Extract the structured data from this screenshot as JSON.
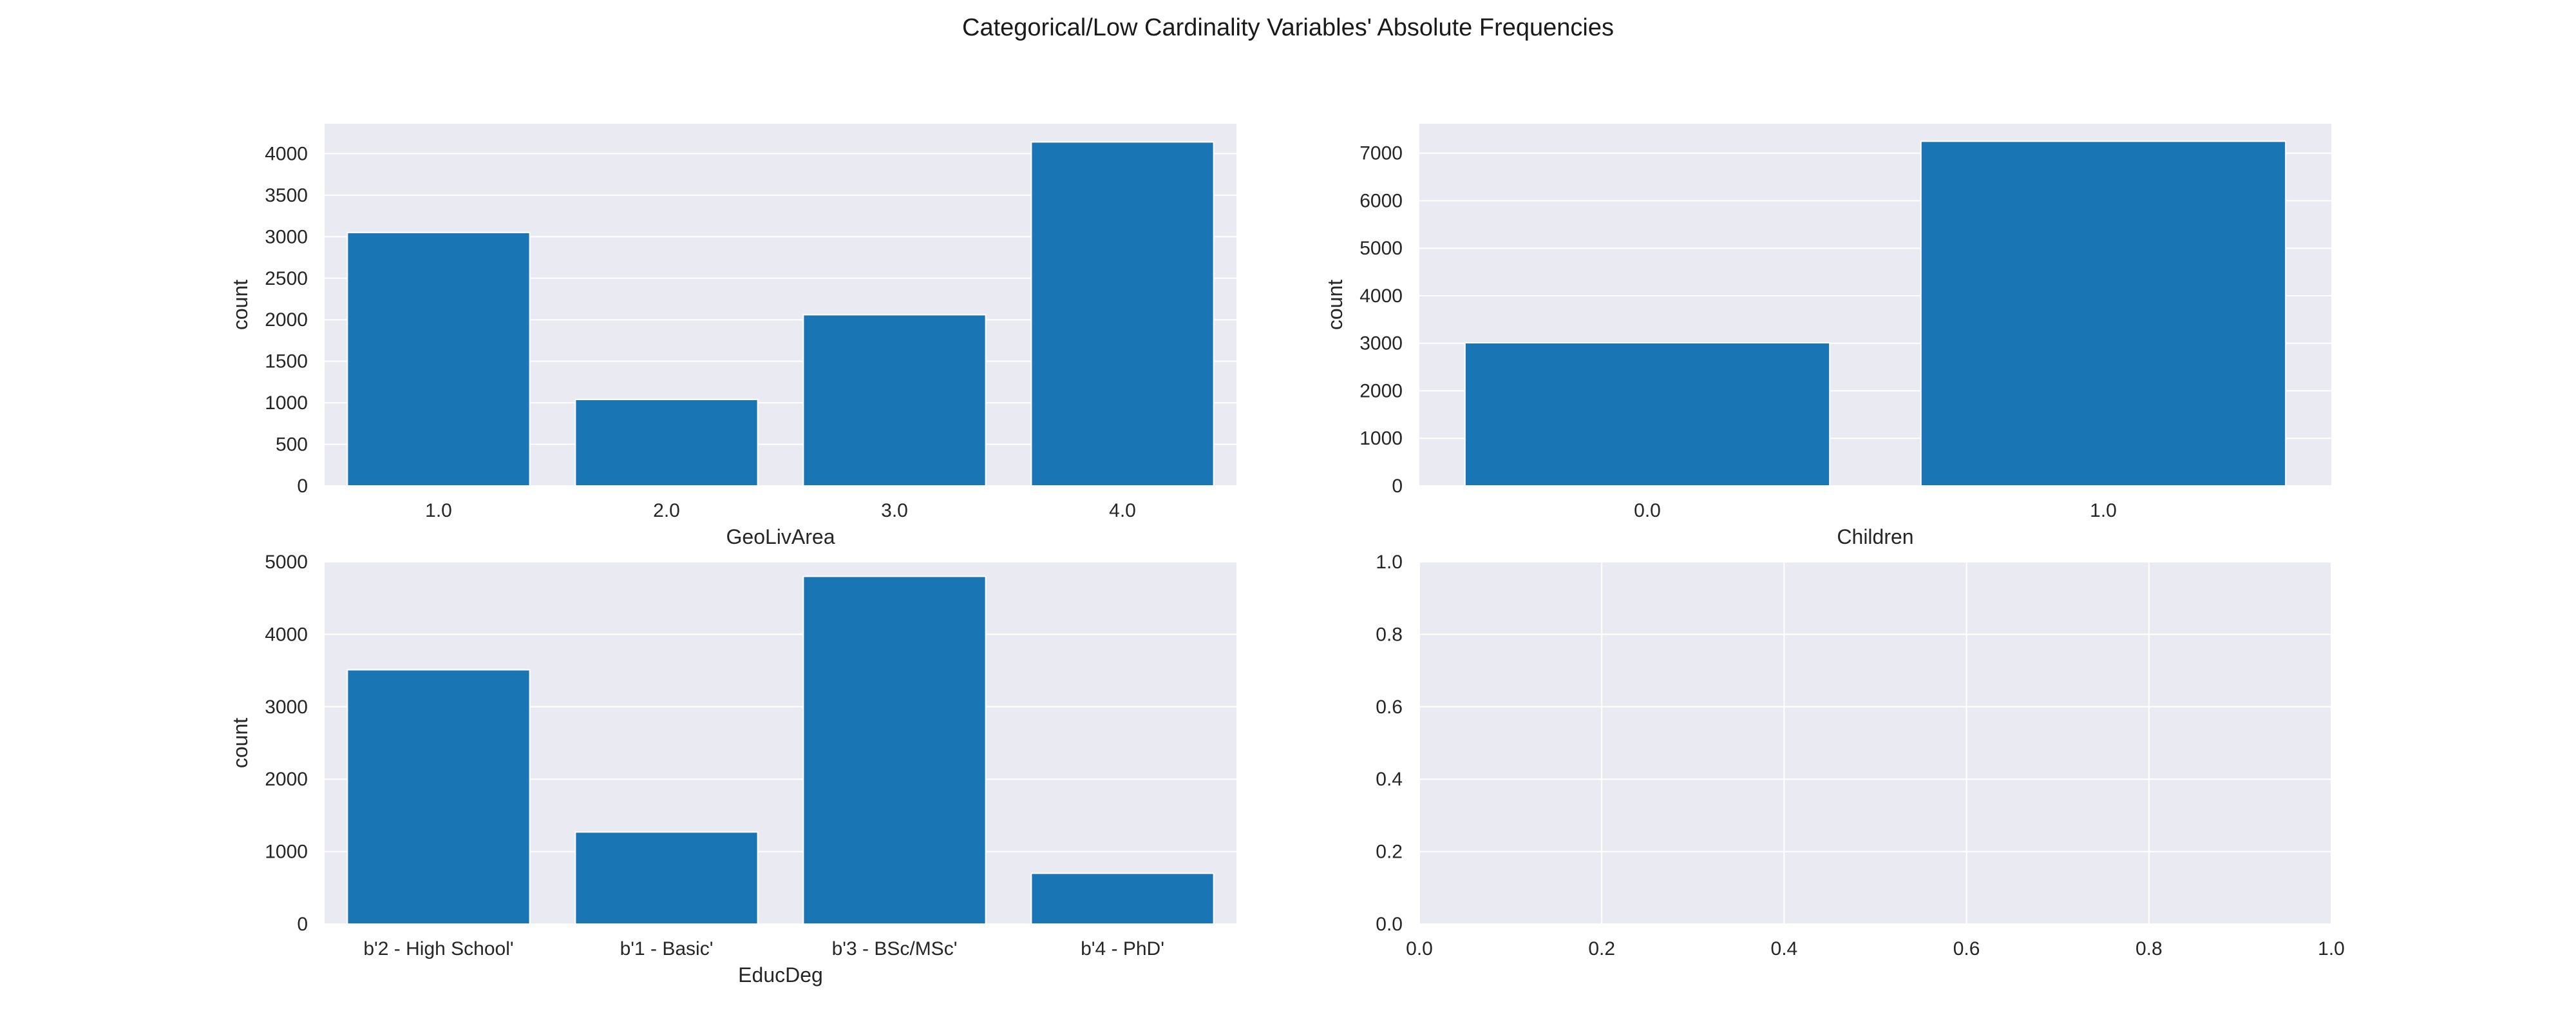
{
  "title": "Categorical/Low Cardinality Variables' Absolute Frequencies",
  "colors": {
    "bar": "#1a75b5",
    "background": "#eaeaf2",
    "grid": "#ffffff"
  },
  "chart_data": [
    {
      "type": "bar",
      "categories": [
        "1.0",
        "2.0",
        "3.0",
        "4.0"
      ],
      "values": [
        3050,
        1040,
        2060,
        4140
      ],
      "xlabel": "GeoLivArea",
      "ylabel": "count",
      "ylim": [
        0,
        4360
      ],
      "yticks": [
        "0",
        "500",
        "1000",
        "1500",
        "2000",
        "2500",
        "3000",
        "3500",
        "4000"
      ],
      "grid": true
    },
    {
      "type": "bar",
      "categories": [
        "0.0",
        "1.0"
      ],
      "values": [
        3010,
        7250
      ],
      "xlabel": "Children",
      "ylabel": "count",
      "ylim": [
        0,
        7620
      ],
      "yticks": [
        "0",
        "1000",
        "2000",
        "3000",
        "4000",
        "5000",
        "6000",
        "7000"
      ],
      "grid": true
    },
    {
      "type": "bar",
      "categories": [
        "b'2 - High School'",
        "b'1 - Basic'",
        "b'3 - BSc/MSc'",
        "b'4 - PhD'"
      ],
      "values": [
        3510,
        1270,
        4800,
        700
      ],
      "xlabel": "EducDeg",
      "ylabel": "count",
      "ylim": [
        0,
        5000
      ],
      "yticks": [
        "0",
        "1000",
        "2000",
        "3000",
        "4000",
        "5000"
      ],
      "grid": true
    },
    {
      "type": "scatter",
      "categories": [],
      "values": [],
      "xlabel": "",
      "ylabel": "",
      "xlim": [
        0,
        1
      ],
      "ylim": [
        0,
        1
      ],
      "xticks": [
        "0.0",
        "0.2",
        "0.4",
        "0.6",
        "0.8",
        "1.0"
      ],
      "yticks": [
        "0.0",
        "0.2",
        "0.4",
        "0.6",
        "0.8",
        "1.0"
      ],
      "grid": true
    }
  ]
}
